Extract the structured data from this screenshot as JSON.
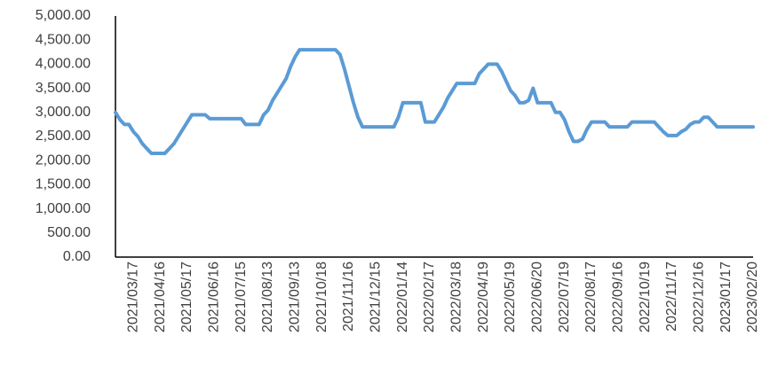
{
  "chart_data": {
    "type": "line",
    "categories": [
      null,
      null,
      null,
      null,
      "2021/03/17",
      null,
      null,
      null,
      null,
      null,
      "2021/04/16",
      null,
      null,
      null,
      null,
      null,
      "2021/05/17",
      null,
      null,
      null,
      null,
      null,
      "2021/06/16",
      null,
      null,
      null,
      null,
      null,
      "2021/07/15",
      null,
      null,
      null,
      null,
      null,
      "2021/08/13",
      null,
      null,
      null,
      null,
      null,
      "2021/09/13",
      null,
      null,
      null,
      null,
      null,
      "2021/10/18",
      null,
      null,
      null,
      null,
      null,
      "2021/11/16",
      null,
      null,
      null,
      null,
      null,
      "2021/12/15",
      null,
      null,
      null,
      null,
      null,
      "2022/01/14",
      null,
      null,
      null,
      null,
      null,
      "2022/02/17",
      null,
      null,
      null,
      null,
      null,
      "2022/03/18",
      null,
      null,
      null,
      null,
      null,
      "2022/04/19",
      null,
      null,
      null,
      null,
      null,
      "2022/05/19",
      null,
      null,
      null,
      null,
      null,
      "2022/06/20",
      null,
      null,
      null,
      null,
      null,
      "2022/07/19",
      null,
      null,
      null,
      null,
      null,
      "2022/08/17",
      null,
      null,
      null,
      null,
      null,
      "2022/09/16",
      null,
      null,
      null,
      null,
      null,
      "2022/10/19",
      null,
      null,
      null,
      null,
      null,
      "2022/11/17",
      null,
      null,
      null,
      null,
      null,
      "2022/12/16",
      null,
      null,
      null,
      null,
      null,
      "2023/01/17",
      null,
      null,
      null,
      null,
      null,
      "2023/02/20"
    ],
    "values": [
      3000,
      2850,
      2750,
      2750,
      2600,
      2500,
      2350,
      2250,
      2150,
      2150,
      2150,
      2150,
      2250,
      2350,
      2500,
      2650,
      2800,
      2950,
      2950,
      2950,
      2950,
      2870,
      2870,
      2870,
      2870,
      2870,
      2870,
      2870,
      2870,
      2750,
      2750,
      2750,
      2750,
      2950,
      3050,
      3250,
      3400,
      3550,
      3700,
      3950,
      4150,
      4300,
      4300,
      4300,
      4300,
      4300,
      4300,
      4300,
      4300,
      4300,
      4200,
      3900,
      3550,
      3200,
      2900,
      2700,
      2700,
      2700,
      2700,
      2700,
      2700,
      2700,
      2700,
      2900,
      3200,
      3200,
      3200,
      3200,
      3200,
      2800,
      2800,
      2800,
      2950,
      3100,
      3300,
      3450,
      3600,
      3600,
      3600,
      3600,
      3600,
      3800,
      3900,
      4000,
      4000,
      4000,
      3850,
      3650,
      3450,
      3350,
      3200,
      3200,
      3250,
      3500,
      3200,
      3200,
      3200,
      3200,
      3000,
      3000,
      2850,
      2600,
      2400,
      2400,
      2450,
      2650,
      2800,
      2800,
      2800,
      2800,
      2700,
      2700,
      2700,
      2700,
      2700,
      2800,
      2800,
      2800,
      2800,
      2800,
      2800,
      2700,
      2600,
      2520,
      2520,
      2520,
      2600,
      2650,
      2750,
      2800,
      2800,
      2900,
      2900,
      2800,
      2700,
      2700,
      2700,
      2700,
      2700,
      2700,
      2700,
      2700,
      2700
    ],
    "color": "#5b9bd5",
    "ylim": [
      0,
      5000
    ],
    "yticks": [
      {
        "value": 0,
        "label": "0.00"
      },
      {
        "value": 500,
        "label": "500.00"
      },
      {
        "value": 1000,
        "label": "1,000.00"
      },
      {
        "value": 1500,
        "label": "1,500.00"
      },
      {
        "value": 2000,
        "label": "2,000.00"
      },
      {
        "value": 2500,
        "label": "2,500.00"
      },
      {
        "value": 3000,
        "label": "3,000.00"
      },
      {
        "value": 3500,
        "label": "3,500.00"
      },
      {
        "value": 4000,
        "label": "4,000.00"
      },
      {
        "value": 4500,
        "label": "4,500.00"
      },
      {
        "value": 5000,
        "label": "5,000.00"
      }
    ],
    "grid": false
  }
}
